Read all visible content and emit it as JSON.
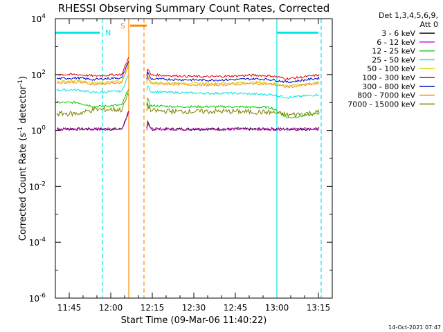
{
  "chart_data": {
    "type": "line",
    "title": "RHESSI Observing Summary Count Rates, Corrected",
    "xlabel": "Start Time (09-Mar-06 11:40:22)",
    "ylabel_main": "Corrected Count Rate (s",
    "ylabel_sup1": "-1",
    "ylabel_mid": " detector",
    "ylabel_sup2": "-1",
    "ylabel_end": ")",
    "x_unit": "minutes since 11:40",
    "xlim": [
      0,
      100
    ],
    "ylim": [
      -6,
      4
    ],
    "y_scale": "log10",
    "x_ticks": [
      {
        "x": 5,
        "label": "11:45"
      },
      {
        "x": 20,
        "label": "12:00"
      },
      {
        "x": 35,
        "label": "12:15"
      },
      {
        "x": 50,
        "label": "12:30"
      },
      {
        "x": 65,
        "label": "12:45"
      },
      {
        "x": 80,
        "label": "13:00"
      },
      {
        "x": 95,
        "label": "13:15"
      }
    ],
    "y_ticks": [
      {
        "exp": 4,
        "base": "10",
        "sup": "4"
      },
      {
        "exp": 2,
        "base": "10",
        "sup": "2"
      },
      {
        "exp": 0,
        "base": "10",
        "sup": "0"
      },
      {
        "exp": -2,
        "base": "10",
        "sup": "-2"
      },
      {
        "exp": -4,
        "base": "10",
        "sup": "-4"
      },
      {
        "exp": -6,
        "base": "10",
        "sup": "-6"
      }
    ],
    "legend_header": [
      "Det 1,3,4,5,6,9,",
      "Att 0"
    ],
    "legend_position": "right",
    "series": [
      {
        "name": "3 - 6 keV",
        "color": "#000000",
        "logv": [
          0.05,
          0.05,
          0.05,
          0.05,
          0.05,
          0.05,
          0.05,
          0.05,
          0.05,
          0.05,
          0.05,
          0.05,
          0.05
        ]
      },
      {
        "name": "6 - 12 keV",
        "color": "#cc00cc",
        "logv": [
          0.05,
          0.05,
          0.05,
          0.05,
          0.05,
          0.05,
          0.05,
          0.05,
          0.05,
          0.05,
          0.05,
          0.05,
          0.05
        ]
      },
      {
        "name": "12 - 25 keV",
        "color": "#00cc00",
        "logv": [
          1.0,
          1.0,
          0.85,
          0.9,
          0.9,
          0.88,
          0.85,
          0.85,
          0.85,
          0.83,
          0.82,
          0.45,
          0.6
        ]
      },
      {
        "name": "25 - 50 keV",
        "color": "#00e5e5",
        "logv": [
          1.45,
          1.45,
          1.35,
          1.4,
          1.4,
          1.38,
          1.35,
          1.33,
          1.33,
          1.3,
          1.28,
          1.18,
          1.28
        ]
      },
      {
        "name": "50 - 100 keV",
        "color": "#d4d400",
        "logv": [
          1.75,
          1.78,
          1.7,
          1.75,
          1.75,
          1.72,
          1.7,
          1.68,
          1.7,
          1.72,
          1.7,
          1.6,
          1.72
        ]
      },
      {
        "name": "100 - 300 keV",
        "color": "#e00000",
        "logv": [
          2.0,
          2.0,
          1.95,
          2.0,
          2.0,
          1.98,
          1.95,
          1.92,
          1.95,
          1.98,
          1.95,
          1.85,
          1.98
        ]
      },
      {
        "name": "300 - 800 keV",
        "color": "#0000cc",
        "logv": [
          1.85,
          1.88,
          1.82,
          1.88,
          1.87,
          1.84,
          1.82,
          1.8,
          1.82,
          1.85,
          1.82,
          1.73,
          1.87
        ]
      },
      {
        "name": "800 - 7000 keV",
        "color": "#ff8800",
        "logv": [
          1.7,
          1.73,
          1.65,
          1.7,
          1.7,
          1.67,
          1.65,
          1.62,
          1.65,
          1.68,
          1.65,
          1.55,
          1.68
        ]
      },
      {
        "name": "7000 - 15000 keV",
        "color": "#808000",
        "logv": [
          0.6,
          0.6,
          0.75,
          0.75,
          0.72,
          0.7,
          0.68,
          0.68,
          0.68,
          0.66,
          0.65,
          0.55,
          0.65
        ]
      }
    ],
    "series_x": [
      0,
      8,
      14,
      22,
      26,
      36,
      45,
      55,
      65,
      72,
      78,
      84,
      95
    ],
    "flags": [
      {
        "label": "N",
        "color": "#00e5e5",
        "x": [
          0,
          16
        ],
        "logv": 3.5
      },
      {
        "label": "S",
        "color": "#ff8800",
        "x": [
          27,
          33
        ],
        "logv": 3.75
      },
      {
        "label": "",
        "color": "#00e5e5",
        "x": [
          80,
          95
        ],
        "logv": 3.5
      }
    ],
    "vlines": [
      {
        "x": 17,
        "color": "#00e5e5",
        "style": "dashed"
      },
      {
        "x": 26.5,
        "color": "#ff8800",
        "style": "solid"
      },
      {
        "x": 32,
        "color": "#ff8800",
        "style": "dashed"
      },
      {
        "x": 80,
        "color": "#00e5e5",
        "style": "solid"
      },
      {
        "x": 96,
        "color": "#00e5e5",
        "style": "dashed"
      }
    ],
    "timestamp": "14-Oct-2021 07:47"
  }
}
